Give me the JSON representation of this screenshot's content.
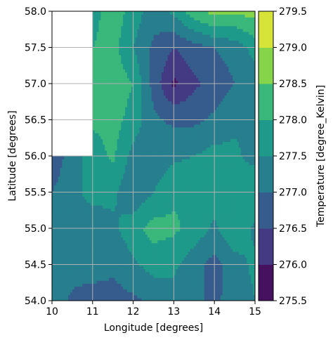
{
  "chart_data": {
    "type": "heatmap",
    "subtype": "filled-contour",
    "title": "",
    "xlabel": "Longitude [degrees]",
    "ylabel": "Latitude [degrees]",
    "xlim": [
      10,
      15
    ],
    "ylim": [
      54.0,
      58.0
    ],
    "x_ticks": [
      "10",
      "11",
      "12",
      "13",
      "14",
      "15"
    ],
    "y_ticks": [
      "54.0",
      "54.5",
      "55.0",
      "55.5",
      "56.0",
      "56.5",
      "57.0",
      "57.5",
      "58.0"
    ],
    "grid": true,
    "colorbar": {
      "label": "Temperature [degree_Kelvin]",
      "ticks": [
        "275.5",
        "276.0",
        "276.5",
        "277.0",
        "277.5",
        "278.0",
        "278.5",
        "279.0",
        "279.5"
      ],
      "levels": [
        275.5,
        276.0,
        276.5,
        277.0,
        277.5,
        278.0,
        278.5,
        279.0,
        279.5
      ],
      "colors": [
        "#46115f",
        "#433a83",
        "#365c8d",
        "#277f8e",
        "#1f9a8a",
        "#3ab77b",
        "#85d44a",
        "#d6e43a"
      ],
      "colormap": "viridis"
    },
    "masked_region": "no data for longitude 10–11 at latitude above 56.0",
    "x": [
      10.0,
      10.5,
      11.0,
      11.5,
      12.0,
      12.5,
      13.0,
      13.5,
      14.0,
      14.5,
      15.0
    ],
    "y": [
      54.0,
      54.5,
      55.0,
      55.5,
      56.0,
      56.5,
      57.0,
      57.5,
      58.0
    ],
    "z": [
      [
        277.3,
        276.9,
        276.7,
        276.8,
        276.9,
        277.1,
        277.3,
        277.1,
        276.9,
        277.2,
        277.5
      ],
      [
        277.4,
        277.2,
        277.3,
        277.1,
        277.4,
        277.7,
        277.6,
        277.2,
        276.8,
        277.3,
        277.6
      ],
      [
        277.4,
        277.5,
        277.3,
        277.4,
        277.8,
        278.2,
        278.1,
        277.8,
        277.4,
        277.9,
        277.4
      ],
      [
        277.0,
        277.4,
        277.6,
        277.6,
        277.1,
        277.5,
        277.9,
        278.0,
        277.7,
        277.9,
        278.0
      ],
      [
        276.6,
        277.3,
        277.7,
        278.1,
        277.3,
        277.2,
        277.4,
        277.5,
        277.7,
        277.6,
        277.3
      ],
      [
        null,
        null,
        278.1,
        278.2,
        277.8,
        277.1,
        276.9,
        276.9,
        277.1,
        277.4,
        277.5
      ],
      [
        null,
        null,
        278.1,
        278.3,
        278.0,
        276.8,
        275.9,
        276.4,
        276.7,
        277.0,
        277.2
      ],
      [
        null,
        null,
        278.0,
        278.2,
        277.5,
        276.9,
        276.5,
        276.8,
        277.0,
        277.2,
        277.7
      ],
      [
        null,
        null,
        277.8,
        278.3,
        277.8,
        277.2,
        277.6,
        278.3,
        278.7,
        278.6,
        278.7
      ]
    ]
  }
}
